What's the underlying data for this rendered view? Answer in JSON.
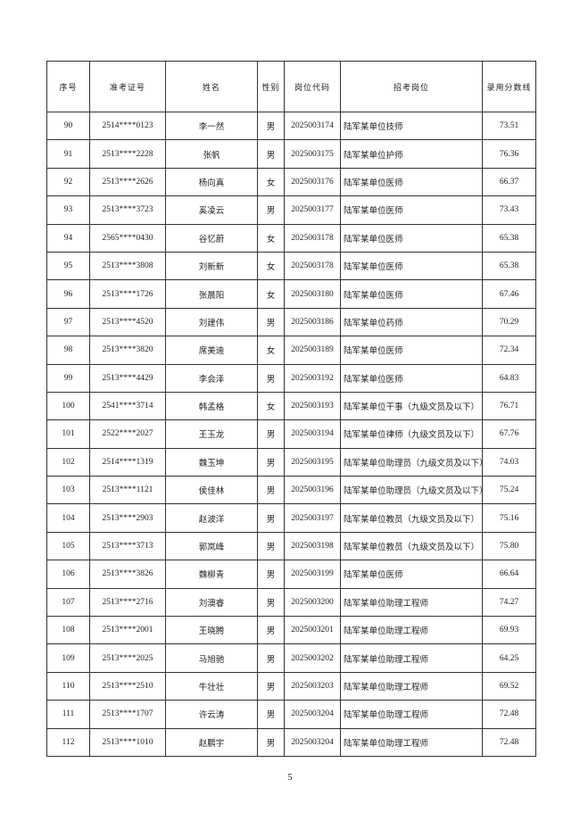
{
  "table": {
    "headers": [
      "序号",
      "准考证号",
      "姓名",
      "性别",
      "岗位代码",
      "招考岗位",
      "录用分数线"
    ],
    "rows": [
      [
        "90",
        "2514****0123",
        "李一然",
        "男",
        "2025003174",
        "陆军某单位技师",
        "73.51"
      ],
      [
        "91",
        "2513****2228",
        "张帆",
        "男",
        "2025003175",
        "陆军某单位护师",
        "76.36"
      ],
      [
        "92",
        "2513****2626",
        "杨向真",
        "女",
        "2025003176",
        "陆军某单位医师",
        "66.37"
      ],
      [
        "93",
        "2513****3723",
        "奚凌云",
        "男",
        "2025003177",
        "陆军某单位医师",
        "73.43"
      ],
      [
        "94",
        "2565****0430",
        "谷忆蔚",
        "女",
        "2025003178",
        "陆军某单位医师",
        "65.38"
      ],
      [
        "95",
        "2513****3808",
        "刘新新",
        "女",
        "2025003178",
        "陆军某单位医师",
        "65.38"
      ],
      [
        "96",
        "2513****1726",
        "张晨阳",
        "女",
        "2025003180",
        "陆军某单位医师",
        "67.46"
      ],
      [
        "97",
        "2513****4520",
        "刘建伟",
        "男",
        "2025003186",
        "陆军某单位药师",
        "70.29"
      ],
      [
        "98",
        "2513****3820",
        "席美迪",
        "女",
        "2025003189",
        "陆军某单位医师",
        "72.34"
      ],
      [
        "99",
        "2513****4429",
        "李会泽",
        "男",
        "2025003192",
        "陆军某单位医师",
        "64.83"
      ],
      [
        "100",
        "2541****3714",
        "韩孟格",
        "女",
        "2025003193",
        "陆军某单位干事（九级文员及以下）",
        "76.71"
      ],
      [
        "101",
        "2522****2027",
        "王玉龙",
        "男",
        "2025003194",
        "陆军某单位律师（九级文员及以下）",
        "67.76"
      ],
      [
        "102",
        "2514****1319",
        "魏玉坤",
        "男",
        "2025003195",
        "陆军某单位助理员（九级文员及以下）",
        "74.03"
      ],
      [
        "103",
        "2513****1121",
        "侯佳林",
        "男",
        "2025003196",
        "陆军某单位助理员（九级文员及以下）",
        "75.24"
      ],
      [
        "104",
        "2513****2903",
        "赵波洋",
        "男",
        "2025003197",
        "陆军某单位教员（九级文员及以下）",
        "75.16"
      ],
      [
        "105",
        "2513****3713",
        "郭岚峰",
        "男",
        "2025003198",
        "陆军某单位教员（九级文员及以下）",
        "75.80"
      ],
      [
        "106",
        "2513****3826",
        "魏柳青",
        "男",
        "2025003199",
        "陆军某单位医师",
        "66.64"
      ],
      [
        "107",
        "2513****2716",
        "刘澳睿",
        "男",
        "2025003200",
        "陆军某单位助理工程师",
        "74.27"
      ],
      [
        "108",
        "2513****2001",
        "王晓腾",
        "男",
        "2025003201",
        "陆军某单位助理工程师",
        "69.93"
      ],
      [
        "109",
        "2513****2025",
        "马旭驰",
        "男",
        "2025003202",
        "陆军某单位助理工程师",
        "64.25"
      ],
      [
        "110",
        "2513****2510",
        "牛壮壮",
        "男",
        "2025003203",
        "陆军某单位助理工程师",
        "69.52"
      ],
      [
        "111",
        "2513****1707",
        "许云涛",
        "男",
        "2025003204",
        "陆军某单位助理工程师",
        "72.48"
      ],
      [
        "112",
        "2513****1010",
        "赵鹏宇",
        "男",
        "2025003204",
        "陆军某单位助理工程师",
        "72.48"
      ]
    ]
  },
  "page_number": "5"
}
